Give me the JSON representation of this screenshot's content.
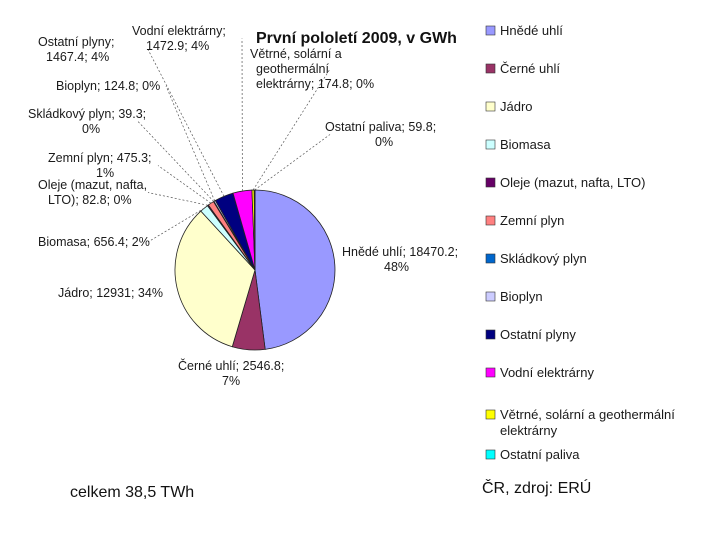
{
  "chart_data": {
    "type": "pie",
    "title": "První pololetí 2009, v GWh",
    "legend_position": "right",
    "slices": [
      {
        "name": "Hnědé uhlí",
        "value": 18470.2,
        "percent": "48%",
        "label": "Hnědé uhlí; 18470.2;",
        "label2": "48%",
        "color": "#9999ff"
      },
      {
        "name": "Černé uhlí",
        "value": 2546.8,
        "percent": "7%",
        "label": "Černé uhlí; 2546.8;",
        "label2": "7%",
        "color": "#993366"
      },
      {
        "name": "Jádro",
        "value": 12931,
        "percent": "34%",
        "label": "Jádro; 12931; 34%",
        "label2": "",
        "color": "#ffffcc"
      },
      {
        "name": "Biomasa",
        "value": 656.4,
        "percent": "2%",
        "label": "Biomasa; 656.4; 2%",
        "label2": "",
        "color": "#ccffff"
      },
      {
        "name": "Oleje (mazut, nafta, LTO)",
        "value": 82.8,
        "percent": "0%",
        "label": "Oleje (mazut, nafta,",
        "label2": "LTO); 82.8; 0%",
        "color": "#660066"
      },
      {
        "name": "Zemní plyn",
        "value": 475.3,
        "percent": "1%",
        "label": "Zemní plyn; 475.3;",
        "label2": "1%",
        "color": "#ff8080"
      },
      {
        "name": "Skládkový plyn",
        "value": 39.3,
        "percent": "0%",
        "label": "Skládkový plyn; 39.3;",
        "label2": "0%",
        "color": "#0066cc"
      },
      {
        "name": "Bioplyn",
        "value": 124.8,
        "percent": "0%",
        "label": "Bioplyn; 124.8; 0%",
        "label2": "",
        "color": "#ccccff"
      },
      {
        "name": "Ostatní plyny",
        "value": 1467.4,
        "percent": "4%",
        "label": "Ostatní plyny;",
        "label2": "1467.4; 4%",
        "color": "#000080"
      },
      {
        "name": "Vodní elektrárny",
        "value": 1472.9,
        "percent": "4%",
        "label": "Vodní elektrárny;",
        "label2": "1472.9; 4%",
        "color": "#ff00ff"
      },
      {
        "name": "Větrné, solární a geothermální elektrárny",
        "value": 174.8,
        "percent": "0%",
        "label": "Větrné, solární a",
        "label2": "geothermální",
        "label3": "elektrárny; 174.8; 0%",
        "color": "#ffff00"
      },
      {
        "name": "Ostatní paliva",
        "value": 59.8,
        "percent": "0%",
        "label": "Ostatní paliva; 59.8;",
        "label2": "0%",
        "color": "#00ffff"
      }
    ],
    "legend_entries": [
      "Hnědé uhlí",
      "Černé uhlí",
      "Jádro",
      "Biomasa",
      "Oleje (mazut, nafta, LTO)",
      "Zemní plyn",
      "Skládkový plyn",
      "Bioplyn",
      "Ostatní plyny",
      "Vodní elektrárny",
      "Větrné, solární a geothermální elektrárny",
      "Ostatní paliva"
    ]
  },
  "footer": {
    "total": "celkem 38,5 TWh",
    "source": "ČR, zdroj: ERÚ"
  }
}
